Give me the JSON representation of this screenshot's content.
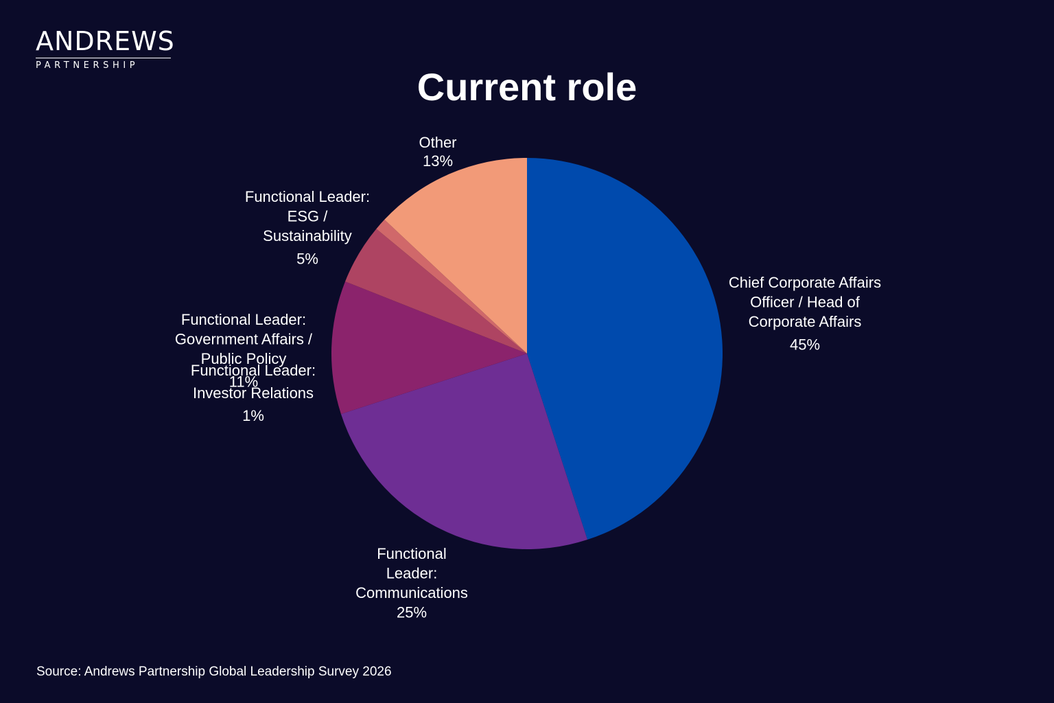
{
  "logo": {
    "main": "ANDREWS",
    "sub": "PARTNERSHIP"
  },
  "source": "Source: Andrews Partnership Global Leadership Survey 2026",
  "colors": {
    "background": "#0b0b29",
    "text": "#ffffff"
  },
  "chart_data": {
    "type": "pie",
    "title": "Current role",
    "slices": [
      {
        "name": "Chief Corporate Affairs Officer / Head of Corporate Affairs",
        "value": 45,
        "value_label": "45%",
        "label_lines": [
          "Chief Corporate Affairs",
          "Officer / Head of",
          "Corporate Affairs"
        ],
        "color": "#004aad"
      },
      {
        "name": "Functional Leader: Communications",
        "value": 25,
        "value_label": "25%",
        "label_lines": [
          "Functional",
          "Leader:",
          "Communications"
        ],
        "color": "#6e2e94"
      },
      {
        "name": "Functional Leader: Government Affairs / Public Policy",
        "value": 11,
        "value_label": "11%",
        "label_lines": [
          "Functional Leader:",
          "Government Affairs /",
          "Public Policy"
        ],
        "color": "#8b236c"
      },
      {
        "name": "Functional Leader: ESG / Sustainability",
        "value": 5,
        "value_label": "5%",
        "label_lines": [
          "Functional Leader:",
          "ESG /",
          "Sustainability"
        ],
        "color": "#ae4462"
      },
      {
        "name": "Functional Leader: Investor Relations",
        "value": 1,
        "value_label": "1%",
        "label_lines": [
          "Functional Leader:",
          "Investor Relations"
        ],
        "color": "#d0686a"
      },
      {
        "name": "Other",
        "value": 13,
        "value_label": "13%",
        "label_lines": [
          "Other"
        ],
        "color": "#f29a78"
      }
    ]
  }
}
